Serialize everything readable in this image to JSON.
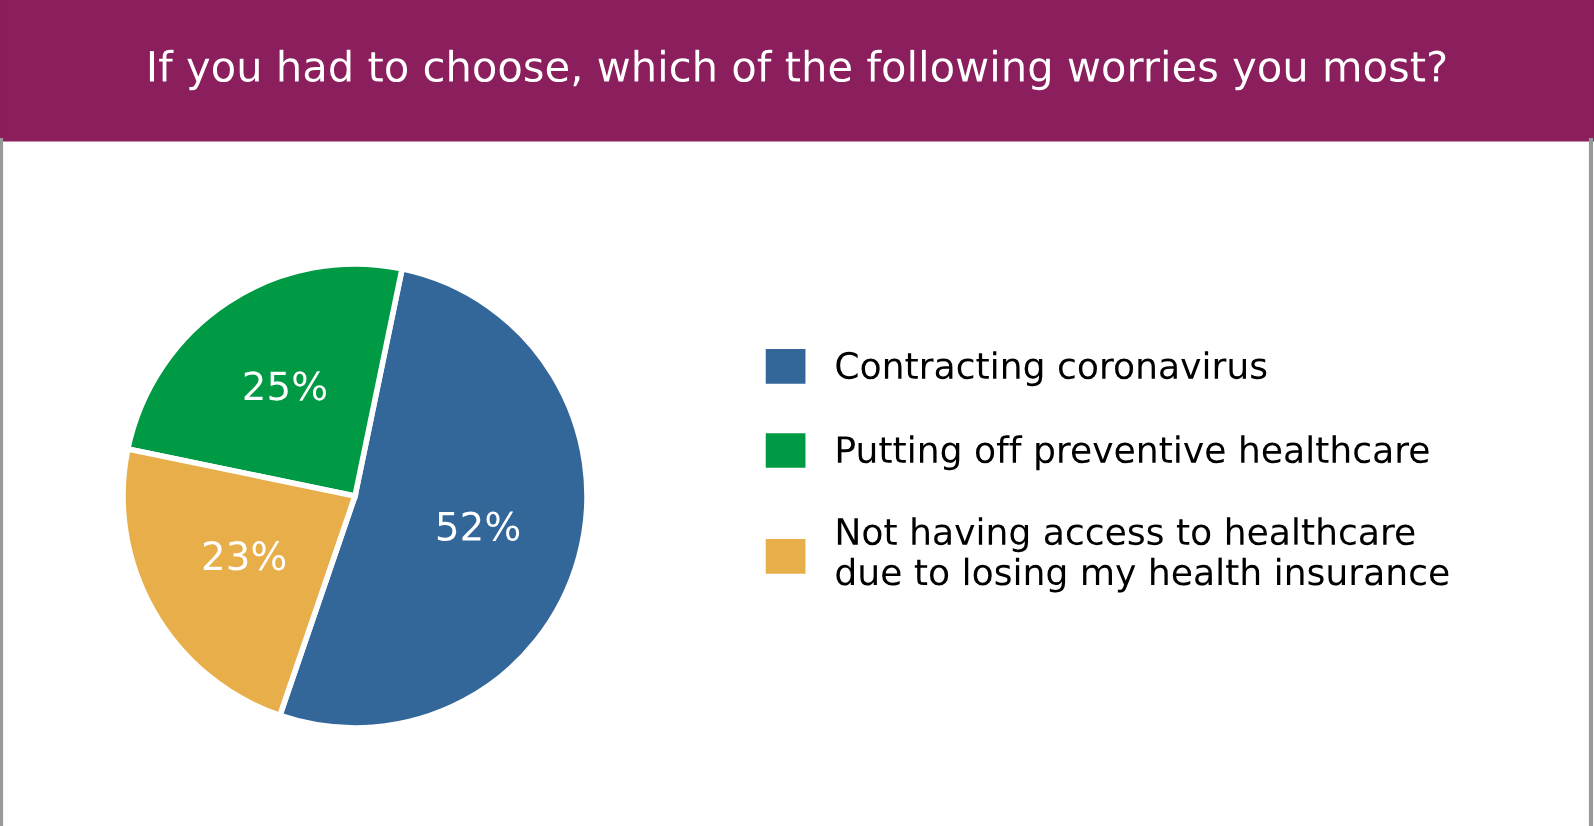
{
  "chart_data": {
    "type": "pie",
    "title": "If you had to choose, which of the following worries you most?",
    "categories": [
      "Contracting coronavirus",
      "Putting off preventive healthcare",
      "Not having access to healthcare\ndue to losing my health insurance"
    ],
    "values": [
      52,
      25,
      23
    ],
    "colors": [
      "#336699",
      "#009944",
      "#e8ae4a"
    ],
    "value_labels": [
      "52%",
      "25%",
      "23%"
    ],
    "legend": "right"
  }
}
